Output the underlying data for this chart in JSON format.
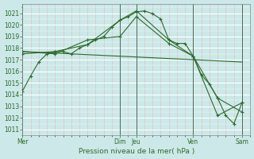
{
  "background_color": "#cce8e8",
  "grid_major_color": "#ffffff",
  "grid_minor_color": "#ddbbbb",
  "line_color": "#2d6a2d",
  "marker_color": "#2d6a2d",
  "xlabel": "Pression niveau de la mer( hPa )",
  "ylim": [
    1010.5,
    1021.8
  ],
  "xlim": [
    0,
    28
  ],
  "yticks": [
    1011,
    1012,
    1013,
    1014,
    1015,
    1016,
    1017,
    1018,
    1019,
    1020,
    1021
  ],
  "day_labels": [
    "Mer",
    "Dim",
    "Jeu",
    "Ven",
    "Sam"
  ],
  "day_positions": [
    0,
    12,
    14,
    21,
    27
  ],
  "vline_color": "#556655",
  "series": [
    {
      "x": [
        0,
        1,
        2,
        3,
        4,
        5,
        6,
        7,
        8,
        9,
        10,
        11,
        12,
        13,
        14,
        15,
        16,
        17,
        18,
        19,
        20,
        21,
        22,
        23,
        24,
        25,
        26,
        27
      ],
      "y": [
        1014.3,
        1015.6,
        1016.8,
        1017.5,
        1017.7,
        1017.7,
        1017.5,
        1018.0,
        1018.3,
        1018.7,
        1019.0,
        1019.8,
        1020.4,
        1020.7,
        1021.1,
        1021.2,
        1020.95,
        1020.5,
        1018.7,
        1018.4,
        1018.4,
        1017.3,
        1015.7,
        1014.9,
        1013.7,
        1012.2,
        1011.5,
        1013.3
      ],
      "marker": true
    },
    {
      "x": [
        0,
        4,
        8,
        12,
        14,
        18,
        21,
        24,
        27
      ],
      "y": [
        1017.5,
        1017.7,
        1018.3,
        1020.4,
        1021.2,
        1018.7,
        1017.3,
        1012.2,
        1013.3
      ],
      "marker": true
    },
    {
      "x": [
        0,
        4,
        8,
        12,
        14,
        18,
        21,
        24,
        27
      ],
      "y": [
        1017.7,
        1017.5,
        1018.7,
        1019.0,
        1020.7,
        1018.4,
        1017.3,
        1013.7,
        1012.5
      ],
      "marker": true
    },
    {
      "x": [
        0,
        27
      ],
      "y": [
        1017.7,
        1016.8
      ],
      "marker": false
    }
  ]
}
